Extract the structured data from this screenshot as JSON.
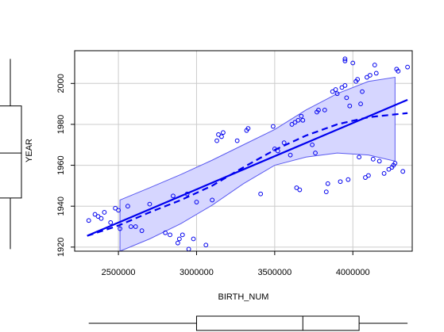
{
  "chart_data": {
    "type": "scatter",
    "xlabel": "BIRTH_NUM",
    "ylabel": "YEAR",
    "xlim": [
      2220000,
      4380000
    ],
    "ylim": [
      1918,
      2016
    ],
    "grid": true,
    "x_ticks": [
      2500000,
      3000000,
      3500000,
      4000000
    ],
    "x_tick_labels": [
      "2500000",
      "3000000",
      "3500000",
      "4000000"
    ],
    "y_ticks": [
      1920,
      1940,
      1960,
      1980,
      2000
    ],
    "y_tick_labels": [
      "1920",
      "1940",
      "1960",
      "1980",
      "2000"
    ],
    "points": [
      [
        2310000,
        1933
      ],
      [
        2350000,
        1936
      ],
      [
        2370000,
        1935
      ],
      [
        2390000,
        1934
      ],
      [
        2410000,
        1937
      ],
      [
        2450000,
        1932
      ],
      [
        2480000,
        1939
      ],
      [
        2500000,
        1938
      ],
      [
        2510000,
        1929
      ],
      [
        2560000,
        1940
      ],
      [
        2580000,
        1930
      ],
      [
        2610000,
        1930
      ],
      [
        2650000,
        1928
      ],
      [
        2700000,
        1941
      ],
      [
        2800000,
        1927
      ],
      [
        2830000,
        1926
      ],
      [
        2850000,
        1945
      ],
      [
        2880000,
        1922
      ],
      [
        2890000,
        1924
      ],
      [
        2910000,
        1926
      ],
      [
        2940000,
        1946
      ],
      [
        2950000,
        1919
      ],
      [
        2980000,
        1924
      ],
      [
        3000000,
        1942
      ],
      [
        3060000,
        1921
      ],
      [
        3100000,
        1943
      ],
      [
        3130000,
        1972
      ],
      [
        3140000,
        1975
      ],
      [
        3160000,
        1974
      ],
      [
        3170000,
        1976
      ],
      [
        3260000,
        1972
      ],
      [
        3320000,
        1977
      ],
      [
        3330000,
        1978
      ],
      [
        3410000,
        1946
      ],
      [
        3490000,
        1979
      ],
      [
        3500000,
        1968
      ],
      [
        3520000,
        1967
      ],
      [
        3560000,
        1971
      ],
      [
        3600000,
        1965
      ],
      [
        3610000,
        1980
      ],
      [
        3630000,
        1981
      ],
      [
        3640000,
        1949
      ],
      [
        3650000,
        1982
      ],
      [
        3660000,
        1948
      ],
      [
        3670000,
        1984
      ],
      [
        3680000,
        1982
      ],
      [
        3740000,
        1970
      ],
      [
        3760000,
        1966
      ],
      [
        3770000,
        1986
      ],
      [
        3780000,
        1987
      ],
      [
        3820000,
        1987
      ],
      [
        3830000,
        1947
      ],
      [
        3840000,
        1951
      ],
      [
        3870000,
        1996
      ],
      [
        3890000,
        1997
      ],
      [
        3900000,
        1995
      ],
      [
        3920000,
        1952
      ],
      [
        3930000,
        1998
      ],
      [
        3950000,
        2011
      ],
      [
        3950000,
        2012
      ],
      [
        3950000,
        1999
      ],
      [
        3960000,
        1993
      ],
      [
        3970000,
        1953
      ],
      [
        3980000,
        1989
      ],
      [
        4000000,
        2010
      ],
      [
        4020000,
        2001
      ],
      [
        4030000,
        2002
      ],
      [
        4040000,
        1964
      ],
      [
        4050000,
        1990
      ],
      [
        4060000,
        1996
      ],
      [
        4080000,
        1954
      ],
      [
        4090000,
        2003
      ],
      [
        4100000,
        1955
      ],
      [
        4110000,
        2004
      ],
      [
        4130000,
        1963
      ],
      [
        4140000,
        2009
      ],
      [
        4150000,
        2005
      ],
      [
        4170000,
        1962
      ],
      [
        4200000,
        1956
      ],
      [
        4230000,
        1958
      ],
      [
        4250000,
        1959
      ],
      [
        4260000,
        1960
      ],
      [
        4270000,
        1961
      ],
      [
        4280000,
        2007
      ],
      [
        4290000,
        2006
      ],
      [
        4320000,
        1957
      ],
      [
        4350000,
        2008
      ]
    ],
    "series": [
      {
        "style": "solid",
        "points": [
          [
            2300000,
            1925.5
          ],
          [
            4350000,
            1992
          ]
        ]
      },
      {
        "style": "dashed",
        "points": [
          [
            2300000,
            1925.5
          ],
          [
            2500000,
            1930.5
          ],
          [
            2700000,
            1937
          ],
          [
            2900000,
            1943
          ],
          [
            3100000,
            1950
          ],
          [
            3300000,
            1959
          ],
          [
            3500000,
            1967.5
          ],
          [
            3700000,
            1974.5
          ],
          [
            3900000,
            1980
          ],
          [
            4100000,
            1983.5
          ],
          [
            4350000,
            1985.5
          ]
        ]
      }
    ],
    "band": {
      "x_start": 2510000,
      "x_end": 4270000,
      "upper": [
        [
          2510000,
          1943
        ],
        [
          2700000,
          1949
        ],
        [
          2900000,
          1955.5
        ],
        [
          3100000,
          1962.5
        ],
        [
          3300000,
          1970
        ],
        [
          3500000,
          1977.5
        ],
        [
          3700000,
          1987
        ],
        [
          3900000,
          1995
        ],
        [
          4100000,
          2001
        ],
        [
          4270000,
          2003
        ]
      ],
      "lower": [
        [
          2510000,
          1918
        ],
        [
          2700000,
          1924
        ],
        [
          2900000,
          1931.5
        ],
        [
          3100000,
          1940.5
        ],
        [
          3300000,
          1951
        ],
        [
          3500000,
          1960
        ],
        [
          3700000,
          1964
        ],
        [
          3900000,
          1966
        ],
        [
          4100000,
          1965
        ],
        [
          4270000,
          1962
        ]
      ]
    },
    "x_boxplot": {
      "min": 2310000,
      "q1": 3000000,
      "median": 3680000,
      "q3": 4040000,
      "max": 4350000
    },
    "y_boxplot": {
      "min": 1919,
      "q1": 1944,
      "median": 1966,
      "q3": 1989,
      "max": 2012
    },
    "colors": {
      "series": "#0000ee",
      "band_fill": "#d6d6ff",
      "band_stroke": "#5a5af0",
      "grid": "#cccccc",
      "axis": "#000000"
    }
  }
}
